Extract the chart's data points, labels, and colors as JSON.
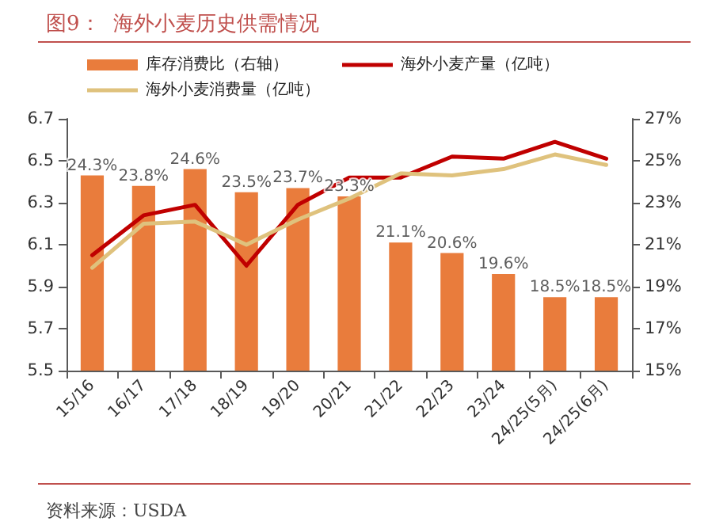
{
  "chart_data": {
    "type": "bar",
    "title": "图9：  海外小麦历史供需情况",
    "categories": [
      "15/16",
      "16/17",
      "17/18",
      "18/19",
      "19/20",
      "20/21",
      "21/22",
      "22/23",
      "23/24",
      "24/25(5月)",
      "24/25(6月)"
    ],
    "series": [
      {
        "name": "库存消费比（右轴）",
        "color": "#e97c3c",
        "axis": "y2",
        "values": [
          24.3,
          23.8,
          24.6,
          23.5,
          23.7,
          23.3,
          21.1,
          20.6,
          19.6,
          18.5,
          18.5
        ],
        "value_labels": [
          "24.3%",
          "23.8%",
          "24.6%",
          "23.5%",
          "23.7%",
          "23.3%",
          "21.1%",
          "20.6%",
          "19.6%",
          "18.5%",
          "18.5%"
        ]
      },
      {
        "type": "line",
        "name": "海外小麦产量（亿吨）",
        "color": "#c00000",
        "values": [
          6.05,
          6.24,
          6.29,
          6.0,
          6.29,
          6.42,
          6.42,
          6.52,
          6.51,
          6.59,
          6.51
        ]
      },
      {
        "type": "line",
        "name": "海外小麦消费量（亿吨）",
        "color": "#dfc27d",
        "values": [
          5.99,
          6.2,
          6.21,
          6.1,
          6.22,
          6.32,
          6.44,
          6.43,
          6.46,
          6.53,
          6.48
        ]
      }
    ],
    "ylim": [
      5.5,
      6.7
    ],
    "yticks": [
      5.5,
      5.7,
      5.9,
      6.1,
      6.3,
      6.5,
      6.7
    ],
    "y2lim": [
      15,
      27
    ],
    "y2ticks": [
      {
        "value": 15,
        "label": "15%"
      },
      {
        "value": 17,
        "label": "17%"
      },
      {
        "value": 19,
        "label": "19%"
      },
      {
        "value": 21,
        "label": "21%"
      },
      {
        "value": 23,
        "label": "23%"
      },
      {
        "value": 25,
        "label": "25%"
      },
      {
        "value": 27,
        "label": "27%"
      }
    ],
    "legend": "top",
    "grid": false,
    "marker": "none",
    "line_style": "solid",
    "annotations": [
      "资料来源：USDA"
    ]
  }
}
